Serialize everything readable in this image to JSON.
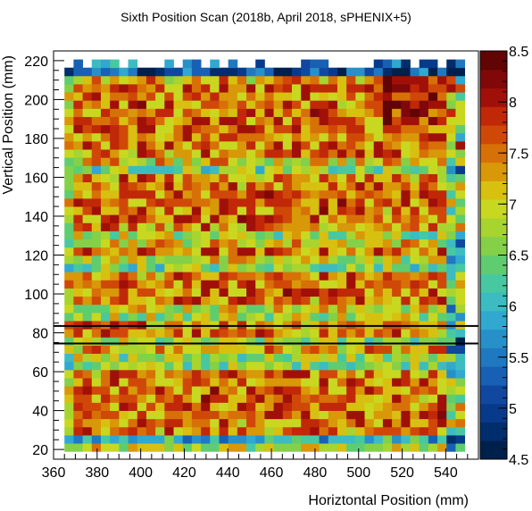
{
  "chart_data": {
    "type": "heatmap",
    "title": "Sixth Position Scan (2018b, April 2018, sPHENIX+5)",
    "xlabel": "Horiztontal Position (mm)",
    "ylabel": "Vertical Position (mm)",
    "xlim": [
      360,
      555
    ],
    "ylim": [
      15,
      225
    ],
    "x_ticks": [
      "360",
      "380",
      "400",
      "420",
      "440",
      "460",
      "480",
      "500",
      "520",
      "540"
    ],
    "y_ticks": [
      "20",
      "40",
      "60",
      "80",
      "100",
      "120",
      "140",
      "160",
      "180",
      "200",
      "220"
    ],
    "zlim": [
      4.5,
      8.5
    ],
    "z_ticks": [
      "4.5",
      "5",
      "5.5",
      "6",
      "6.5",
      "7",
      "7.5",
      "8",
      "8.5"
    ],
    "colormap": [
      "#00204c",
      "#002d6c",
      "#083a8c",
      "#1048a0",
      "#1860b4",
      "#2078c0",
      "#2890c8",
      "#30a8d0",
      "#3cbcc0",
      "#48c8a0",
      "#60cc70",
      "#84d048",
      "#a8d430",
      "#c8d820",
      "#d8c010",
      "#d89808",
      "#d87008",
      "#d04808",
      "#c02808",
      "#a01008",
      "#800808",
      "#600404"
    ],
    "bin": {
      "x0": 365,
      "dx": 4.175,
      "nx": 44,
      "y0": 19,
      "dy": 4.2,
      "ny": 48
    },
    "lines": [
      {
        "y": 74.5
      },
      {
        "y": 83.5
      }
    ],
    "mean_value": 7.3,
    "values": "generated procedurally by script from row/column trends (see chart_script)"
  }
}
